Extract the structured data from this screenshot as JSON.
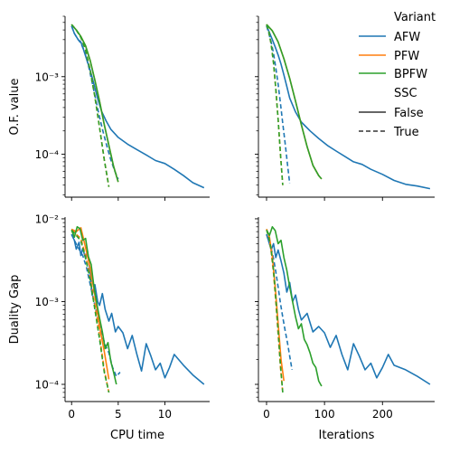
{
  "colors": {
    "AFW": "#1f77b4",
    "PFW": "#ff7f0e",
    "BPFW": "#2ca02c"
  },
  "legend": {
    "title": "Variant",
    "items": [
      "AFW",
      "PFW",
      "BPFW"
    ],
    "ssc_title": "SSC",
    "ssc_items": [
      "False",
      "True"
    ]
  },
  "chart_data": [
    {
      "type": "line",
      "panel": "top-left",
      "ylabel": "O.F. value",
      "xlabel": "",
      "yscale": "log",
      "xlim": [
        -0.7,
        14.8
      ],
      "ylim": [
        2.8e-05,
        0.006
      ],
      "xticks": [
        0,
        5,
        10
      ],
      "xtick_labels": [
        "",
        "",
        ""
      ],
      "yticks": [
        0.0001,
        0.001
      ],
      "ytick_labels": [
        "10⁻⁴",
        "10⁻³"
      ],
      "series": [
        {
          "variant": "AFW",
          "ssc": "False",
          "x": [
            0,
            0.3,
            0.7,
            1.0,
            1.3,
            1.6,
            2.0,
            2.4,
            2.8,
            3.2,
            3.7,
            4.2,
            5.0,
            6.0,
            7.0,
            8.0,
            9.0,
            10.0,
            11.0,
            12.0,
            13.0,
            14.2
          ],
          "y": [
            0.0045,
            0.0036,
            0.003,
            0.0028,
            0.0022,
            0.0017,
            0.0012,
            0.0008,
            0.00052,
            0.00036,
            0.00027,
            0.00021,
            0.000165,
            0.000135,
            0.000115,
            9.8e-05,
            8.3e-05,
            7.6e-05,
            6.4e-05,
            5.3e-05,
            4.3e-05,
            3.7e-05
          ]
        },
        {
          "variant": "AFW",
          "ssc": "True",
          "x": [
            0,
            0.3,
            0.7,
            1.0,
            1.4,
            1.8,
            2.2,
            2.6,
            3.0,
            3.4,
            3.8,
            4.2,
            4.6,
            5.0
          ],
          "y": [
            0.0045,
            0.0036,
            0.003,
            0.0027,
            0.0021,
            0.0014,
            0.00085,
            0.0005,
            0.0003,
            0.00019,
            0.000125,
            8.5e-05,
            6.2e-05,
            4.8e-05
          ]
        },
        {
          "variant": "PFW",
          "ssc": "False",
          "x": [
            0,
            0.5,
            1.0,
            1.5,
            2.0,
            2.5,
            3.0,
            3.5,
            4.0,
            4.5,
            5.0
          ],
          "y": [
            0.0047,
            0.004,
            0.0033,
            0.0025,
            0.0016,
            0.0009,
            0.00048,
            0.00024,
            0.00013,
            7e-05,
            4.4e-05
          ]
        },
        {
          "variant": "PFW",
          "ssc": "True",
          "x": [
            0,
            0.5,
            1.0,
            1.5,
            2.0,
            2.5,
            3.0,
            3.5,
            4.0
          ],
          "y": [
            0.0047,
            0.004,
            0.0032,
            0.0022,
            0.0012,
            0.00055,
            0.00022,
            8.5e-05,
            3.8e-05
          ]
        },
        {
          "variant": "BPFW",
          "ssc": "False",
          "x": [
            0,
            0.5,
            1.0,
            1.5,
            2.0,
            2.5,
            3.0,
            3.5,
            4.0,
            4.5,
            5.0
          ],
          "y": [
            0.0047,
            0.004,
            0.0033,
            0.0025,
            0.0016,
            0.0009,
            0.00048,
            0.00024,
            0.00013,
            7e-05,
            4.4e-05
          ]
        },
        {
          "variant": "BPFW",
          "ssc": "True",
          "x": [
            0,
            0.5,
            1.0,
            1.5,
            2.0,
            2.5,
            3.0,
            3.5,
            4.0
          ],
          "y": [
            0.0047,
            0.004,
            0.0032,
            0.0022,
            0.0012,
            0.00055,
            0.00022,
            8.5e-05,
            3.8e-05
          ]
        }
      ]
    },
    {
      "type": "line",
      "panel": "top-right",
      "ylabel": "",
      "xlabel": "",
      "yscale": "log",
      "xlim": [
        -14,
        290
      ],
      "ylim": [
        2.8e-05,
        0.006
      ],
      "xticks": [
        0,
        100,
        200
      ],
      "xtick_labels": [
        "",
        "",
        ""
      ],
      "yticks": [
        0.0001,
        0.001
      ],
      "ytick_labels": [
        "",
        ""
      ],
      "series": [
        {
          "variant": "AFW",
          "ssc": "False",
          "x": [
            0,
            5,
            10,
            15,
            20,
            25,
            30,
            35,
            40,
            50,
            60,
            75,
            90,
            105,
            120,
            135,
            150,
            165,
            180,
            200,
            220,
            240,
            260,
            282
          ],
          "y": [
            0.0045,
            0.0037,
            0.003,
            0.0024,
            0.0019,
            0.00145,
            0.00105,
            0.00075,
            0.00053,
            0.00035,
            0.00026,
            0.0002,
            0.00016,
            0.00013,
            0.00011,
            9.4e-05,
            8e-05,
            7.4e-05,
            6.4e-05,
            5.5e-05,
            4.6e-05,
            4.1e-05,
            3.9e-05,
            3.6e-05
          ]
        },
        {
          "variant": "AFW",
          "ssc": "True",
          "x": [
            0,
            4,
            8,
            12,
            16,
            20,
            24,
            28,
            32,
            36,
            40
          ],
          "y": [
            0.0045,
            0.0036,
            0.0028,
            0.002,
            0.0013,
            0.0008,
            0.00045,
            0.00025,
            0.00014,
            7.5e-05,
            4.2e-05
          ]
        },
        {
          "variant": "PFW",
          "ssc": "False",
          "x": [
            0,
            10,
            20,
            30,
            40,
            50,
            60,
            70,
            80,
            90,
            95
          ],
          "y": [
            0.0047,
            0.0039,
            0.0028,
            0.0017,
            0.00095,
            0.00048,
            0.00024,
            0.000125,
            7.2e-05,
            5.3e-05,
            4.8e-05
          ]
        },
        {
          "variant": "PFW",
          "ssc": "True",
          "x": [
            0,
            4,
            8,
            12,
            16,
            20,
            24,
            28
          ],
          "y": [
            0.0047,
            0.0038,
            0.0026,
            0.0015,
            0.0007,
            0.00028,
            0.0001,
            4e-05
          ]
        },
        {
          "variant": "BPFW",
          "ssc": "False",
          "x": [
            0,
            10,
            20,
            30,
            40,
            50,
            60,
            70,
            80,
            90,
            95
          ],
          "y": [
            0.0047,
            0.0039,
            0.0028,
            0.0017,
            0.00095,
            0.00048,
            0.00024,
            0.000125,
            7.2e-05,
            5.3e-05,
            4.8e-05
          ]
        },
        {
          "variant": "BPFW",
          "ssc": "True",
          "x": [
            0,
            4,
            8,
            12,
            16,
            20,
            24,
            28
          ],
          "y": [
            0.0047,
            0.0038,
            0.0026,
            0.0015,
            0.0007,
            0.00028,
            0.0001,
            4e-05
          ]
        }
      ]
    },
    {
      "type": "line",
      "panel": "bottom-left",
      "ylabel": "Duality Gap",
      "xlabel": "CPU time",
      "yscale": "log",
      "xlim": [
        -0.7,
        14.8
      ],
      "ylim": [
        6.2e-05,
        0.0105
      ],
      "xticks": [
        0,
        5,
        10
      ],
      "xtick_labels": [
        "0",
        "5",
        "10"
      ],
      "yticks": [
        0.0001,
        0.001,
        0.01
      ],
      "ytick_labels": [
        "10⁻⁴",
        "10⁻³",
        "10⁻²"
      ],
      "series": [
        {
          "variant": "AFW",
          "ssc": "False",
          "x": [
            0,
            0.3,
            0.5,
            0.8,
            1.0,
            1.2,
            1.5,
            1.7,
            2.0,
            2.2,
            2.5,
            2.8,
            3.0,
            3.3,
            3.6,
            4.0,
            4.3,
            4.7,
            5.0,
            5.5,
            6.0,
            6.5,
            7.0,
            7.5,
            8.0,
            8.5,
            9.0,
            9.5,
            10.0,
            10.5,
            11.0,
            12.0,
            13.0,
            14.2
          ],
          "y": [
            0.0065,
            0.0055,
            0.0043,
            0.0052,
            0.0036,
            0.0044,
            0.0033,
            0.0041,
            0.0022,
            0.0012,
            0.0016,
            0.001,
            0.0009,
            0.00125,
            0.0008,
            0.00058,
            0.00072,
            0.00043,
            0.0005,
            0.00042,
            0.00027,
            0.00039,
            0.00023,
            0.000145,
            0.00031,
            0.00022,
            0.00015,
            0.00018,
            0.00012,
            0.00016,
            0.00023,
            0.00017,
            0.00013,
            0.0001
          ]
        },
        {
          "variant": "AFW",
          "ssc": "True",
          "x": [
            0,
            0.4,
            0.8,
            1.2,
            1.6,
            2.0,
            2.4,
            2.8,
            3.2,
            3.6,
            4.0,
            4.4,
            4.8,
            5.2
          ],
          "y": [
            0.0065,
            0.0052,
            0.0043,
            0.0036,
            0.0026,
            0.0016,
            0.001,
            0.00065,
            0.00042,
            0.0003,
            0.00024,
            0.00016,
            0.000125,
            0.00014
          ]
        },
        {
          "variant": "PFW",
          "ssc": "False",
          "x": [
            0,
            0.5,
            1.0,
            1.5,
            2.0,
            2.5,
            3.0,
            3.5,
            4.0
          ],
          "y": [
            0.0075,
            0.007,
            0.0078,
            0.0045,
            0.0025,
            0.0012,
            0.0005,
            0.00025,
            0.000115
          ]
        },
        {
          "variant": "PFW",
          "ssc": "True",
          "x": [
            0,
            0.5,
            1.0,
            1.5,
            2.0,
            2.5,
            3.0,
            3.5,
            4.0
          ],
          "y": [
            0.0075,
            0.0065,
            0.0058,
            0.0036,
            0.0019,
            0.0009,
            0.00038,
            0.00015,
            8e-05
          ]
        },
        {
          "variant": "BPFW",
          "ssc": "False",
          "x": [
            0,
            0.3,
            0.6,
            0.9,
            1.2,
            1.5,
            1.8,
            2.1,
            2.4,
            2.7,
            3.0,
            3.3,
            3.6,
            3.9,
            4.2,
            4.5,
            4.8
          ],
          "y": [
            0.0073,
            0.006,
            0.008,
            0.0076,
            0.0055,
            0.0058,
            0.0035,
            0.0028,
            0.0015,
            0.00095,
            0.00063,
            0.00043,
            0.00027,
            0.00032,
            0.00019,
            0.00014,
            0.0001
          ]
        },
        {
          "variant": "BPFW",
          "ssc": "True",
          "x": [
            0,
            0.5,
            1.0,
            1.5,
            2.0,
            2.5,
            3.0,
            3.5,
            4.0
          ],
          "y": [
            0.0073,
            0.0063,
            0.0054,
            0.0034,
            0.0018,
            0.0008,
            0.00035,
            0.00014,
            8e-05
          ]
        }
      ]
    },
    {
      "type": "line",
      "panel": "bottom-right",
      "ylabel": "",
      "xlabel": "Iterations",
      "yscale": "log",
      "xlim": [
        -14,
        290
      ],
      "ylim": [
        6.2e-05,
        0.0105
      ],
      "xticks": [
        0,
        100,
        200
      ],
      "xtick_labels": [
        "0",
        "100",
        "200"
      ],
      "yticks": [
        0.0001,
        0.001,
        0.01
      ],
      "ytick_labels": [
        "",
        "",
        ""
      ],
      "series": [
        {
          "variant": "AFW",
          "ssc": "False",
          "x": [
            0,
            4,
            8,
            12,
            16,
            20,
            25,
            30,
            35,
            40,
            45,
            50,
            55,
            60,
            70,
            80,
            90,
            100,
            110,
            120,
            130,
            140,
            150,
            160,
            170,
            180,
            190,
            200,
            210,
            220,
            240,
            260,
            282
          ],
          "y": [
            0.0065,
            0.0053,
            0.0042,
            0.005,
            0.0034,
            0.0042,
            0.0031,
            0.0022,
            0.0013,
            0.0017,
            0.001,
            0.0012,
            0.0008,
            0.0006,
            0.00072,
            0.00043,
            0.0005,
            0.00042,
            0.00028,
            0.00039,
            0.00023,
            0.00015,
            0.00031,
            0.00022,
            0.00015,
            0.00018,
            0.00012,
            0.00016,
            0.00023,
            0.00017,
            0.00015,
            0.000125,
            0.0001
          ]
        },
        {
          "variant": "AFW",
          "ssc": "True",
          "x": [
            0,
            4,
            8,
            12,
            16,
            20,
            24,
            28,
            32,
            36,
            40,
            44
          ],
          "y": [
            0.0065,
            0.0053,
            0.0044,
            0.0033,
            0.0023,
            0.0015,
            0.00095,
            0.00065,
            0.00045,
            0.00032,
            0.00022,
            0.00015
          ]
        },
        {
          "variant": "PFW",
          "ssc": "False",
          "x": [
            0,
            5,
            10,
            15,
            20,
            25,
            30
          ],
          "y": [
            0.0075,
            0.006,
            0.0035,
            0.0015,
            0.00055,
            0.0002,
            0.00011
          ]
        },
        {
          "variant": "PFW",
          "ssc": "True",
          "x": [
            0,
            4,
            8,
            12,
            16,
            20,
            24,
            28
          ],
          "y": [
            0.0075,
            0.006,
            0.004,
            0.0022,
            0.001,
            0.0004,
            0.00016,
            8e-05
          ]
        },
        {
          "variant": "BPFW",
          "ssc": "False",
          "x": [
            0,
            5,
            10,
            15,
            20,
            25,
            30,
            35,
            40,
            45,
            50,
            55,
            60,
            65,
            70,
            75,
            80,
            85,
            90,
            95
          ],
          "y": [
            0.0073,
            0.0063,
            0.008,
            0.0072,
            0.005,
            0.0055,
            0.0034,
            0.0024,
            0.0015,
            0.001,
            0.00065,
            0.00047,
            0.00054,
            0.00035,
            0.0003,
            0.00024,
            0.00018,
            0.00016,
            0.00011,
            9.5e-05
          ]
        },
        {
          "variant": "BPFW",
          "ssc": "True",
          "x": [
            0,
            4,
            8,
            12,
            16,
            20,
            24,
            28
          ],
          "y": [
            0.0073,
            0.006,
            0.0042,
            0.0024,
            0.0011,
            0.00045,
            0.00017,
            8e-05
          ]
        }
      ]
    }
  ]
}
